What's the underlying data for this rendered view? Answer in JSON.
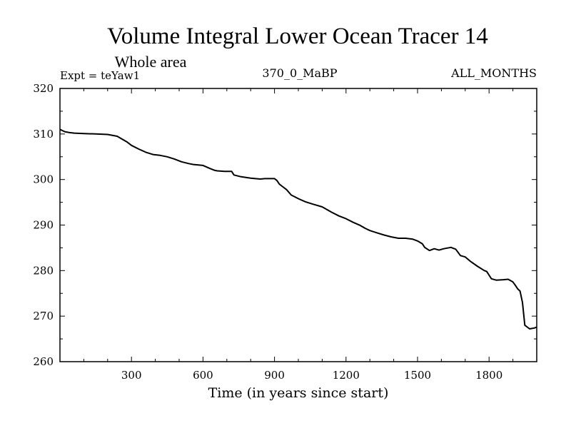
{
  "chart_data": {
    "type": "line",
    "title": "Volume Integral Lower Ocean Tracer 14",
    "subtitle": "Whole area",
    "experiment_label": "Expt = teYaw1",
    "center_label": "370_0_MaBP",
    "right_label": "ALL_MONTHS",
    "xlabel": "Time (in years since start)",
    "ylabel": "",
    "xlim": [
      0,
      2000
    ],
    "ylim": [
      260,
      320
    ],
    "x_ticks": [
      300,
      600,
      900,
      1200,
      1500,
      1800
    ],
    "y_ticks": [
      260,
      270,
      280,
      290,
      300,
      310,
      320
    ],
    "grid": false,
    "series": [
      {
        "name": "teYaw1",
        "x": [
          0,
          20,
          40,
          60,
          100,
          150,
          200,
          240,
          260,
          280,
          300,
          330,
          360,
          390,
          420,
          450,
          480,
          510,
          540,
          560,
          580,
          600,
          630,
          650,
          660,
          690,
          720,
          730,
          760,
          800,
          840,
          860,
          880,
          900,
          910,
          920,
          930,
          950,
          970,
          1000,
          1030,
          1060,
          1100,
          1140,
          1170,
          1200,
          1230,
          1260,
          1280,
          1300,
          1330,
          1360,
          1390,
          1420,
          1450,
          1480,
          1500,
          1520,
          1530,
          1550,
          1570,
          1590,
          1610,
          1640,
          1660,
          1670,
          1680,
          1700,
          1720,
          1750,
          1780,
          1790,
          1810,
          1830,
          1860,
          1880,
          1890,
          1900,
          1910,
          1920,
          1930,
          1940,
          1950,
          1970,
          1990,
          2000
        ],
        "values": [
          311.0,
          310.5,
          310.3,
          310.2,
          310.1,
          310.0,
          309.9,
          309.5,
          308.9,
          308.3,
          307.5,
          306.7,
          306.0,
          305.5,
          305.3,
          305.0,
          304.5,
          303.9,
          303.5,
          303.3,
          303.2,
          303.1,
          302.4,
          302.0,
          301.9,
          301.8,
          301.8,
          301.0,
          300.6,
          300.3,
          300.1,
          300.2,
          300.2,
          300.2,
          299.8,
          299.0,
          298.6,
          297.8,
          296.6,
          295.8,
          295.1,
          294.6,
          294.0,
          292.8,
          292.0,
          291.4,
          290.6,
          289.9,
          289.3,
          288.8,
          288.3,
          287.8,
          287.4,
          287.1,
          287.1,
          286.9,
          286.5,
          285.9,
          285.1,
          284.4,
          284.8,
          284.5,
          284.8,
          285.1,
          284.7,
          284.0,
          283.3,
          283.0,
          282.1,
          281.0,
          280.0,
          279.8,
          278.2,
          277.9,
          278.0,
          278.1,
          277.8,
          277.5,
          276.8,
          276.0,
          275.5,
          273.0,
          268.0,
          267.2,
          267.4,
          267.6
        ]
      }
    ]
  }
}
